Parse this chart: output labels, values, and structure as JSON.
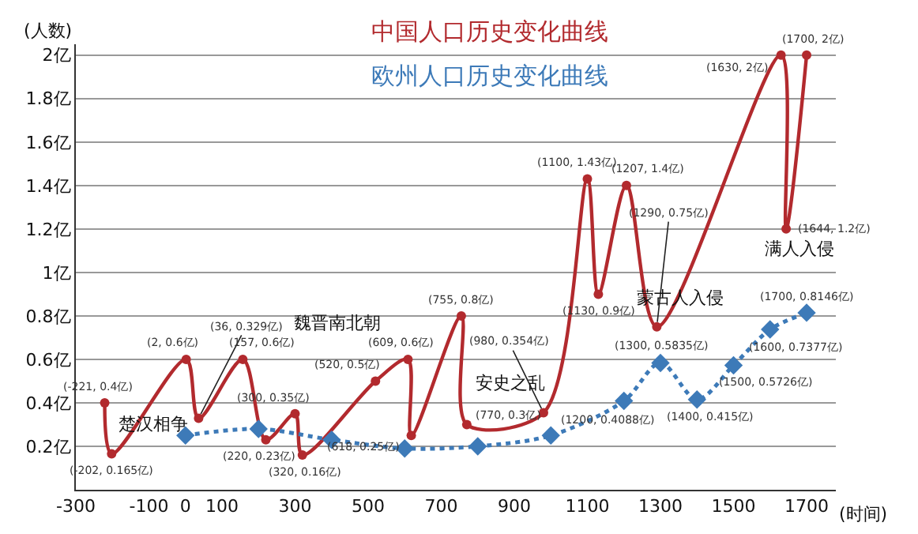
{
  "chart_data": {
    "type": "line",
    "xlabel": "(时间)",
    "ylabel": "(人数)",
    "xlim": [
      -300,
      1780
    ],
    "xticks": [
      -300,
      -100,
      0,
      100,
      300,
      500,
      700,
      900,
      1100,
      1300,
      1500,
      1700
    ],
    "ylim": [
      0,
      2.05
    ],
    "yticks": [
      {
        "value": 0.2,
        "label": "0.2亿"
      },
      {
        "value": 0.4,
        "label": "0.4亿"
      },
      {
        "value": 0.6,
        "label": "0.6亿"
      },
      {
        "value": 0.8,
        "label": "0.8亿"
      },
      {
        "value": 1,
        "label": "1亿"
      },
      {
        "value": 1.2,
        "label": "1.2亿"
      },
      {
        "value": 1.4,
        "label": "1.4亿"
      },
      {
        "value": 1.6,
        "label": "1.6亿"
      },
      {
        "value": 1.8,
        "label": "1.8亿"
      },
      {
        "value": 2,
        "label": "2亿"
      }
    ],
    "grid": "y",
    "legend": false,
    "series": [
      {
        "name": "中国人口历史变化曲线",
        "color": "#b22a2e",
        "marker": "circle",
        "line_style": "solid",
        "x": [
          -221,
          -202,
          2,
          36,
          157,
          220,
          300,
          320,
          520,
          609,
          618,
          755,
          770,
          980,
          1100,
          1130,
          1207,
          1290,
          1630,
          1644,
          1700
        ],
        "values": [
          0.4,
          0.165,
          0.6,
          0.329,
          0.6,
          0.23,
          0.35,
          0.16,
          0.5,
          0.6,
          0.25,
          0.8,
          0.3,
          0.354,
          1.43,
          0.9,
          1.4,
          0.75,
          2,
          1.2,
          2
        ],
        "value_labels": [
          "(-221, 0.4亿)",
          "(-202, 0.165亿)",
          "(2, 0.6亿)",
          "(36, 0.329亿)",
          "(157, 0.6亿)",
          "(220, 0.23亿)",
          "(300, 0.35亿)",
          "(320, 0.16亿)",
          "(520, 0.5亿)",
          "(609, 0.6亿)",
          "(618, 0.25亿)",
          "(755, 0.8亿)",
          "(770, 0.3亿)",
          "(980, 0.354亿)",
          "(1100, 1.43亿)",
          "(1130, 0.9亿)",
          "(1207, 1.4亿)",
          "(1290, 0.75亿)",
          "(1630, 2亿)",
          "(1644, 1.2亿)",
          "(1700, 2亿)"
        ]
      },
      {
        "name": "欧州人口历史变化曲线",
        "color": "#3d7ab8",
        "marker": "diamond",
        "line_style": "dotted",
        "x": [
          0,
          200,
          400,
          600,
          800,
          1000,
          1200,
          1300,
          1400,
          1500,
          1600,
          1700
        ],
        "values": [
          0.25,
          0.28,
          0.23,
          0.19,
          0.2,
          0.25,
          0.4088,
          0.5835,
          0.415,
          0.5726,
          0.7377,
          0.8146
        ],
        "value_labels": [
          null,
          null,
          null,
          null,
          null,
          null,
          "(1200, 0.4088亿)",
          "(1300, 0.5835亿)",
          "(1400, 0.415亿)",
          "(1500, 0.5726亿)",
          "(1600, 0.7377亿)",
          "(1700, 0.8146亿)"
        ]
      }
    ],
    "annotations": [
      "楚汉相争",
      "魏晋南北朝",
      "安史之乱",
      "蒙古人入侵",
      "满人入侵"
    ]
  }
}
